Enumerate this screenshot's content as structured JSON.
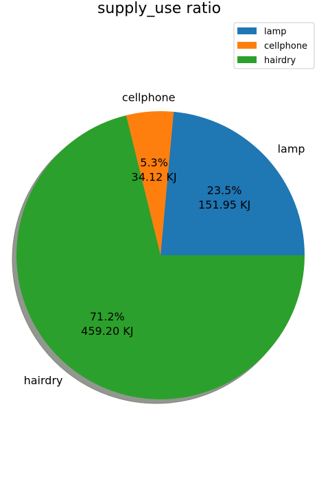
{
  "chart_data": {
    "type": "pie",
    "title": "supply_use ratio",
    "categories": [
      "lamp",
      "cellphone",
      "hairdry"
    ],
    "values": [
      151.95,
      34.12,
      459.2
    ],
    "percent_labels": [
      "23.5%",
      "5.3%",
      "71.2%"
    ],
    "value_labels": [
      "151.95 KJ",
      "34.12 KJ",
      "459.20 KJ"
    ],
    "colors": [
      "#1f77b4",
      "#ff7f0e",
      "#2ca02c"
    ],
    "start_angle": 0,
    "direction": "counterclockwise",
    "shadow": true,
    "legend": {
      "placement": "top-right",
      "entries": [
        "lamp",
        "cellphone",
        "hairdry"
      ]
    }
  }
}
